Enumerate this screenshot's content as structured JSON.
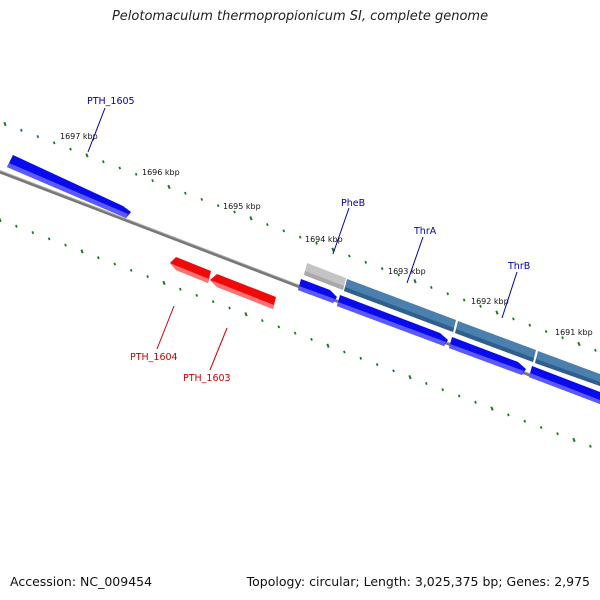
{
  "title": "Pelotomaculum thermopropionicum SI, complete genome",
  "footer": {
    "accession": "Accession: NC_009454",
    "summary": "Topology: circular; Length: 3,025,375 bp; Genes: 2,975"
  },
  "colors": {
    "forward_gene": "#0a0aee",
    "reverse_gene": "#ee0a0a",
    "operon": "#4a7fae",
    "pseudo": "#c4c4c4",
    "backbone": "#777777",
    "ticks": "#1a7a1a",
    "forward_label": "#0000aa",
    "reverse_label": "#cc0000"
  },
  "ticks": [
    {
      "label": "1697 kbp"
    },
    {
      "label": "1696 kbp"
    },
    {
      "label": "1695 kbp"
    },
    {
      "label": "1694 kbp"
    },
    {
      "label": "1693 kbp"
    },
    {
      "label": "1692 kbp"
    },
    {
      "label": "1691 kbp"
    }
  ],
  "genes": [
    {
      "name": "PTH_1605",
      "strand": "forward"
    },
    {
      "name": "PheB",
      "strand": "forward"
    },
    {
      "name": "ThrA",
      "strand": "forward"
    },
    {
      "name": "ThrB",
      "strand": "forward"
    },
    {
      "name": "PTH_1604",
      "strand": "reverse"
    },
    {
      "name": "PTH_1603",
      "strand": "reverse"
    }
  ]
}
